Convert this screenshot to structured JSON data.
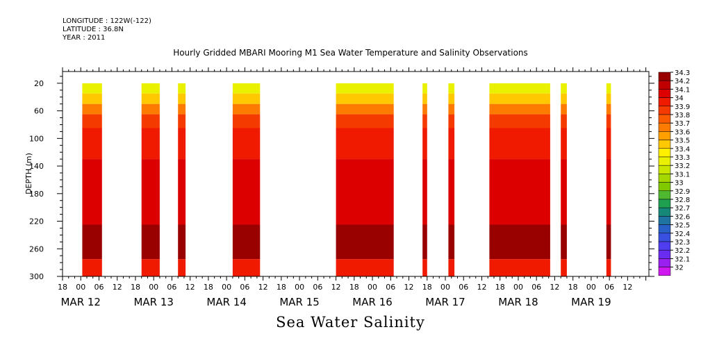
{
  "meta": {
    "longitude": "LONGITUDE : 122W(-122)",
    "latitude": "LATITUDE : 36.8N",
    "year": "YEAR : 2011"
  },
  "chart_data": {
    "type": "heatmap",
    "title": "Hourly Gridded MBARI Mooring M1 Sea Water Temperature and Salinity Observations",
    "variable_label": "Sea Water Salinity",
    "ylabel": "DEPTH (m)",
    "y_axis_inverted": true,
    "ylim": [
      300,
      0
    ],
    "y_ticks": [
      20,
      60,
      100,
      140,
      180,
      220,
      260,
      300
    ],
    "x_hour_labels": [
      "18",
      "00",
      "06",
      "12",
      "18",
      "00",
      "06",
      "12",
      "18",
      "00",
      "06",
      "12",
      "18",
      "00",
      "06",
      "12",
      "18",
      "00",
      "06",
      "12",
      "18",
      "00",
      "06",
      "12",
      "18",
      "00",
      "06",
      "12",
      "18",
      "00",
      "06",
      "12"
    ],
    "x_date_labels": [
      {
        "label": "MAR 12",
        "hour": 24
      },
      {
        "label": "MAR 13",
        "hour": 48
      },
      {
        "label": "MAR 14",
        "hour": 72
      },
      {
        "label": "MAR 15",
        "hour": 96
      },
      {
        "label": "MAR 16",
        "hour": 120
      },
      {
        "label": "MAR 17",
        "hour": 144
      },
      {
        "label": "MAR 18",
        "hour": 168
      },
      {
        "label": "MAR 19",
        "hour": 192
      }
    ],
    "colorbar_levels": [
      34.3,
      34.2,
      34.1,
      34,
      33.9,
      33.8,
      33.7,
      33.6,
      33.5,
      33.4,
      33.3,
      33.2,
      33.1,
      33,
      32.9,
      32.8,
      32.7,
      32.6,
      32.5,
      32.4,
      32.3,
      32.2,
      32.1,
      32
    ],
    "colorbar_colors": [
      "#990000",
      "#c00000",
      "#dd0000",
      "#ef1a00",
      "#f53a00",
      "#fa5a00",
      "#fd7b00",
      "#ffa000",
      "#ffc800",
      "#fff000",
      "#e9f000",
      "#c8e600",
      "#a5d800",
      "#80c800",
      "#4fb830",
      "#1ea050",
      "#168878",
      "#1e73a0",
      "#2860c8",
      "#3a50e0",
      "#4e3ef0",
      "#6a2cf0",
      "#9a20f0",
      "#d018f0"
    ],
    "depth_profile": [
      {
        "depth_range": [
          20,
          35
        ],
        "salinity": 33.3
      },
      {
        "depth_range": [
          35,
          50
        ],
        "salinity": 33.5
      },
      {
        "depth_range": [
          50,
          65
        ],
        "salinity": 33.7
      },
      {
        "depth_range": [
          65,
          85
        ],
        "salinity": 33.9
      },
      {
        "depth_range": [
          85,
          130
        ],
        "salinity": 34.0
      },
      {
        "depth_range": [
          130,
          225
        ],
        "salinity": 34.1
      },
      {
        "depth_range": [
          225,
          275
        ],
        "salinity": 34.3
      },
      {
        "depth_range": [
          275,
          300
        ],
        "salinity": 34.0
      }
    ],
    "data_blocks": [
      {
        "start_hour": 24.5,
        "end_hour": 31
      },
      {
        "start_hour": 44,
        "end_hour": 50
      },
      {
        "start_hour": 56,
        "end_hour": 58.5
      },
      {
        "start_hour": 74,
        "end_hour": 83
      },
      {
        "start_hour": 108,
        "end_hour": 127
      },
      {
        "start_hour": 136.5,
        "end_hour": 138
      },
      {
        "start_hour": 145,
        "end_hour": 147
      },
      {
        "start_hour": 158.5,
        "end_hour": 178.5
      },
      {
        "start_hour": 182,
        "end_hour": 184
      },
      {
        "start_hour": 197,
        "end_hour": 198.5
      }
    ]
  }
}
